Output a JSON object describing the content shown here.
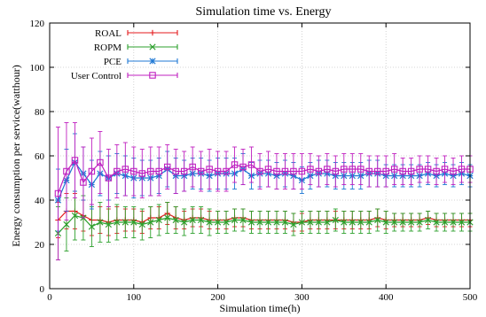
{
  "chart_data": {
    "type": "line",
    "title": "Simulation time vs. Energy",
    "xlabel": "Simulation time(h)",
    "ylabel": "Energy consumption per service(watthour)",
    "xlim": [
      0,
      500
    ],
    "ylim": [
      0,
      120
    ],
    "xticks": [
      "0",
      "100",
      "200",
      "300",
      "400",
      "500"
    ],
    "yticks": [
      "0",
      "20",
      "40",
      "60",
      "80",
      "100",
      "120"
    ],
    "grid": true,
    "legend_position": "top-left",
    "x": [
      10,
      20,
      30,
      40,
      50,
      60,
      70,
      80,
      90,
      100,
      110,
      120,
      130,
      140,
      150,
      160,
      170,
      180,
      190,
      200,
      210,
      220,
      230,
      240,
      250,
      260,
      270,
      280,
      290,
      300,
      310,
      320,
      330,
      340,
      350,
      360,
      370,
      380,
      390,
      400,
      410,
      420,
      430,
      440,
      450,
      460,
      470,
      480,
      490,
      500
    ],
    "series": [
      {
        "name": "ROAL",
        "color": "#e41a1c",
        "marker": "plus",
        "values": [
          31,
          35,
          35,
          33,
          31,
          31,
          30,
          31,
          31,
          31,
          30,
          32,
          32,
          34,
          32,
          31,
          32,
          32,
          31,
          31,
          31,
          32,
          32,
          31,
          31,
          31,
          31,
          31,
          30,
          30,
          31,
          31,
          31,
          31,
          31,
          31,
          31,
          31,
          32,
          31,
          31,
          31,
          31,
          31,
          32,
          31,
          31,
          31,
          31,
          31
        ],
        "errors": [
          8,
          8,
          8,
          7,
          7,
          6,
          6,
          6,
          5,
          5,
          5,
          5,
          5,
          5,
          5,
          4,
          4,
          4,
          4,
          4,
          4,
          4,
          4,
          4,
          4,
          4,
          4,
          4,
          4,
          4,
          4,
          4,
          4,
          4,
          4,
          4,
          4,
          4,
          4,
          4,
          3,
          3,
          3,
          3,
          3,
          3,
          3,
          3,
          3,
          3
        ]
      },
      {
        "name": "ROPM",
        "color": "#2ca02c",
        "marker": "x",
        "values": [
          25,
          29,
          33,
          32,
          28,
          30,
          29,
          30,
          30,
          30,
          29,
          30,
          31,
          32,
          31,
          30,
          31,
          31,
          30,
          30,
          30,
          31,
          31,
          30,
          30,
          30,
          30,
          30,
          29,
          30,
          30,
          30,
          30,
          31,
          30,
          30,
          30,
          30,
          31,
          30,
          30,
          30,
          30,
          30,
          31,
          30,
          30,
          30,
          30,
          30
        ],
        "errors": [
          12,
          12,
          11,
          10,
          9,
          9,
          8,
          8,
          7,
          7,
          7,
          7,
          7,
          7,
          6,
          6,
          6,
          6,
          6,
          5,
          5,
          5,
          5,
          5,
          5,
          5,
          5,
          5,
          5,
          5,
          5,
          5,
          5,
          5,
          5,
          5,
          5,
          5,
          5,
          5,
          4,
          4,
          4,
          4,
          4,
          4,
          4,
          4,
          4,
          4
        ]
      },
      {
        "name": "PCE",
        "color": "#1f78d4",
        "marker": "star",
        "values": [
          40,
          49,
          57,
          52,
          47,
          52,
          50,
          52,
          51,
          50,
          50,
          50,
          51,
          54,
          51,
          51,
          52,
          52,
          51,
          52,
          52,
          52,
          54,
          51,
          52,
          52,
          51,
          52,
          51,
          49,
          51,
          52,
          52,
          51,
          51,
          51,
          51,
          52,
          52,
          51,
          51,
          51,
          51,
          51,
          52,
          51,
          52,
          51,
          52,
          51
        ],
        "errors": [
          14,
          14,
          13,
          12,
          11,
          10,
          10,
          9,
          9,
          9,
          8,
          8,
          8,
          8,
          8,
          7,
          7,
          7,
          7,
          7,
          7,
          7,
          7,
          6,
          6,
          6,
          6,
          6,
          6,
          6,
          6,
          6,
          6,
          6,
          6,
          6,
          6,
          6,
          6,
          5,
          5,
          5,
          5,
          5,
          5,
          5,
          5,
          5,
          5,
          5
        ]
      },
      {
        "name": "User Control",
        "color": "#c020c0",
        "marker": "square",
        "values": [
          43,
          53,
          58,
          48,
          53,
          57,
          50,
          53,
          54,
          53,
          52,
          53,
          53,
          55,
          53,
          53,
          55,
          53,
          54,
          53,
          53,
          56,
          55,
          56,
          53,
          54,
          53,
          53,
          53,
          53,
          54,
          53,
          54,
          53,
          54,
          54,
          54,
          53,
          53,
          53,
          54,
          53,
          53,
          54,
          54,
          53,
          54,
          53,
          54,
          54
        ],
        "errors": [
          30,
          22,
          17,
          16,
          15,
          14,
          13,
          12,
          12,
          11,
          11,
          11,
          11,
          10,
          10,
          9,
          9,
          9,
          9,
          9,
          9,
          8,
          8,
          8,
          8,
          8,
          8,
          8,
          8,
          8,
          7,
          7,
          7,
          7,
          7,
          7,
          7,
          7,
          7,
          7,
          7,
          6,
          6,
          6,
          6,
          6,
          6,
          6,
          6,
          6
        ]
      }
    ]
  }
}
